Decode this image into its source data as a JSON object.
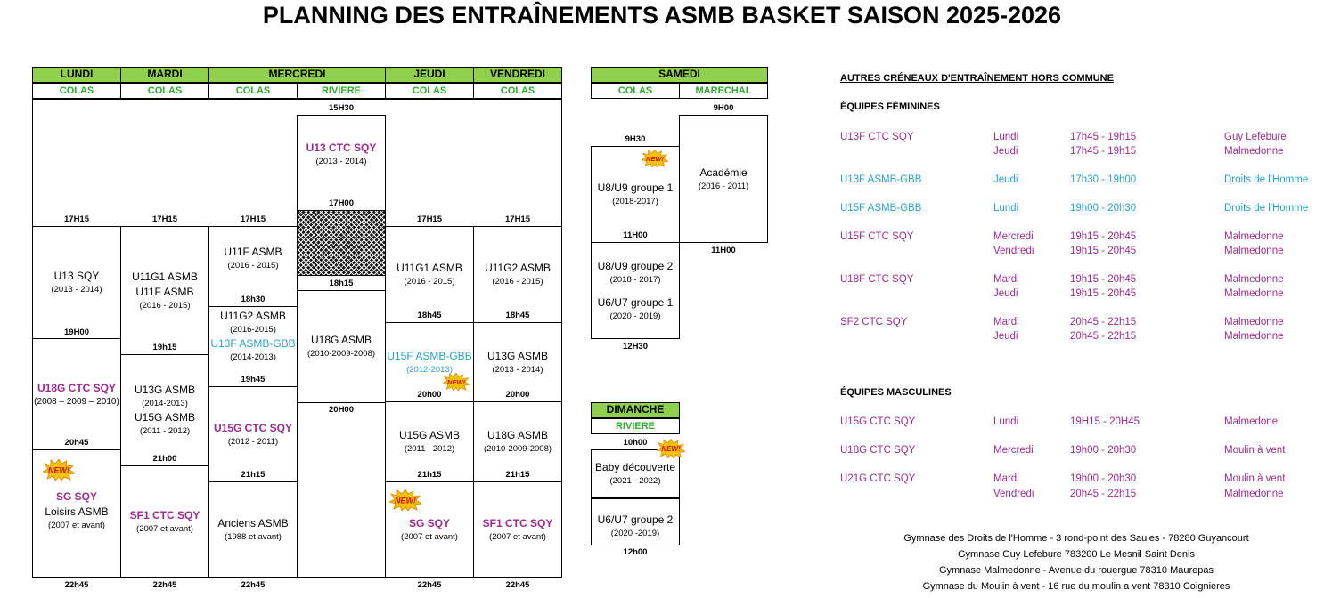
{
  "title": "PLANNING DES ENTRAÎNEMENTS ASMB BASKET SAISON 2025-2026",
  "days": {
    "lundi": "LUNDI",
    "mardi": "MARDI",
    "mercredi": "MERCREDI",
    "jeudi": "JEUDI",
    "vendredi": "VENDREDI",
    "samedi": "SAMEDI",
    "dimanche": "DIMANCHE"
  },
  "venues": {
    "lundi": "COLAS",
    "mardi": "COLAS",
    "mercredi_a": "COLAS",
    "mercredi_b": "RIVIERE",
    "jeudi": "COLAS",
    "vendredi": "COLAS",
    "samedi_a": "COLAS",
    "samedi_b": "MARECHAL",
    "dimanche": "RIVIERE"
  },
  "new_badge": "NEW!",
  "times": {
    "t1715": "17H15",
    "t1530": "15H30",
    "t1700": "17H00",
    "t1830": "18h30",
    "t1815": "18h15",
    "t1845": "18h45",
    "t1900": "19H00",
    "t1915": "19h15",
    "t1945": "19h45",
    "t2000": "20h00",
    "t2000b": "20H00",
    "t2045": "20h45",
    "t2100": "21h00",
    "t2115": "21h15",
    "t2245": "22h45",
    "t930": "9H30",
    "t900": "9H00",
    "t1100": "11H00",
    "t1100b": "11h00",
    "t1230": "12H30",
    "t1000": "10h00",
    "t1200": "12h00"
  },
  "blocks": {
    "lun1": {
      "name": "U13 SQY",
      "years": "(2013 - 2014)"
    },
    "lun2": {
      "name": "U18G CTC SQY",
      "years": "(2008 – 2009 – 2010)"
    },
    "lun3": {
      "name1": "SG SQY",
      "name2": "Loisirs ASMB",
      "years": "(2007 et avant)"
    },
    "mar1": {
      "name1": "U11G1 ASMB",
      "name2": "U11F ASMB",
      "years": "(2016 - 2015)"
    },
    "mar2": {
      "name1": "U13G ASMB",
      "years1": "(2014-2013)",
      "name2": "U15G ASMB",
      "years2": "(2011 - 2012)"
    },
    "mar3": {
      "name": "SF1 CTC SQY",
      "years": "(2007 et avant)"
    },
    "mer1": {
      "name": "U11F ASMB",
      "years": "(2016 - 2015)"
    },
    "mer2": {
      "name1": "U11G2 ASMB",
      "years1": "(2016-2015)",
      "name2": "U13F ASMB-GBB",
      "years2": "(2014-2013)"
    },
    "mer3": {
      "name": "U15G CTC SQY",
      "years": "(2012 - 2011)"
    },
    "mer4": {
      "name": "Anciens ASMB",
      "years": "(1988 et avant)"
    },
    "riv1": {
      "name": "U13 CTC SQY",
      "years": "(2013 - 2014)"
    },
    "riv2": {
      "name": "U18G ASMB",
      "years": "(2010-2009-2008)"
    },
    "jeu1": {
      "name": "U11G1 ASMB",
      "years": "(2016 - 2015)"
    },
    "jeu2": {
      "name": "U15F ASMB-GBB",
      "years": "(2012-2013)"
    },
    "jeu3": {
      "name": "U15G ASMB",
      "years": "(2011 - 2012)"
    },
    "jeu4": {
      "name": "SG SQY",
      "years": "(2007 et avant)"
    },
    "ven1": {
      "name": "U11G2 ASMB",
      "years": "(2016 - 2015)"
    },
    "ven2": {
      "name": "U13G ASMB",
      "years": "(2013 - 2014)"
    },
    "ven3": {
      "name": "U18G ASMB",
      "years": "(2010-2009-2008)"
    },
    "ven4": {
      "name": "SF1 CTC SQY",
      "years": "(2007 et avant)"
    },
    "sam1": {
      "name": "U8/U9  groupe 1",
      "years": "(2018-2017)"
    },
    "sam2": {
      "name1": "U8/U9 groupe 2",
      "years1": "(2018 - 2017)",
      "name2": "U6/U7 groupe 1",
      "years2": "(2020 - 2019)"
    },
    "sam3": {
      "name": "Académie",
      "years": "(2016 - 2011)"
    },
    "dim1": {
      "name": "Baby découverte",
      "years": "(2021 - 2022)"
    },
    "dim2": {
      "name": "U6/U7 groupe 2",
      "years": "(2020 -2019)"
    }
  },
  "others": {
    "heading": "AUTRES CRÉNEAUX D'ENTRAÎNEMENT HORS COMMUNE",
    "fem_heading": "ÉQUIPES FÉMININES",
    "masc_heading": "ÉQUIPES MASCULINES",
    "fem": [
      {
        "team": "U13F CTC SQY",
        "day": "Lundi",
        "time": "17h45 - 19h15",
        "place": "Guy Lefebure",
        "color": "#9b2c8c"
      },
      {
        "team": "",
        "day": "Jeudi",
        "time": "17h45 - 19h15",
        "place": "Malmedonne",
        "color": "#9b2c8c"
      },
      {
        "team": "U13F ASMB-GBB",
        "day": "Jeudi",
        "time": "17h30 - 19h00",
        "place": "Droits de l'Homme",
        "color": "#2aa0c8"
      },
      {
        "team": "U15F ASMB-GBB",
        "day": "Lundi",
        "time": "19h00 - 20h30",
        "place": "Droits de l'Homme",
        "color": "#2aa0c8"
      },
      {
        "team": "U15F CTC SQY",
        "day": "Mercredi",
        "time": "19h15 - 20h45",
        "place": "Malmedonne",
        "color": "#9b2c8c"
      },
      {
        "team": "",
        "day": "Vendredi",
        "time": "19h15 - 20h45",
        "place": "Malmedonne",
        "color": "#9b2c8c"
      },
      {
        "team": "U18F CTC SQY",
        "day": "Mardi",
        "time": "19h15 - 20h45",
        "place": "Malmedonne",
        "color": "#9b2c8c"
      },
      {
        "team": "",
        "day": "Jeudi",
        "time": "19h15 - 20h45",
        "place": "Malmedonne",
        "color": "#9b2c8c"
      },
      {
        "team": "SF2 CTC SQY",
        "day": "Mardi",
        "time": "20h45 - 22h15",
        "place": "Malmedonne",
        "color": "#9b2c8c"
      },
      {
        "team": "",
        "day": "Jeudi",
        "time": "20h45 - 22h15",
        "place": "Malmedonne",
        "color": "#9b2c8c"
      }
    ],
    "masc": [
      {
        "team": "U15G CTC SQY",
        "day": "Lundi",
        "time": "19H15 - 20H45",
        "place": "Malmedone",
        "color": "#9b2c8c"
      },
      {
        "team": "U18G CTC SQY",
        "day": "Mercredi",
        "time": "19h00 - 20h30",
        "place": "Moulin à vent",
        "color": "#9b2c8c"
      },
      {
        "team": "U21G CTC SQY",
        "day": "Mardi",
        "time": "19h00 - 20h30",
        "place": "Moulin à vent",
        "color": "#9b2c8c"
      },
      {
        "team": "",
        "day": "Vendredi",
        "time": "20h45 - 22h15",
        "place": "Malmedonne",
        "color": "#9b2c8c"
      }
    ]
  },
  "gyms": [
    "Gymnase des Droits de l'Homme - 3 rond-point des Saules - 78280 Guyancourt",
    "Gymnase Guy Lefebure 783200 Le Mesnil Saint Denis",
    "Gymnase Malmedonne - Avenue du rouergue 78310 Maurepas",
    "Gymnase du Moulin à vent - 16 rue du moulin a vent 78310 Coignieres"
  ]
}
